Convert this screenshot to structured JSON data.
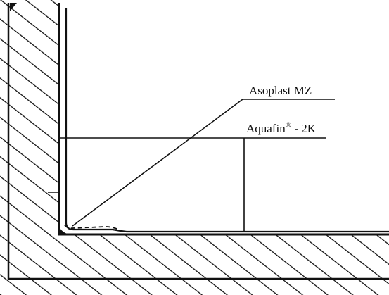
{
  "labels": {
    "asoplast": "Asoplast MZ",
    "aquafin_name": "Aquafin",
    "aquafin_mark": "®",
    "aquafin_suffix": " - 2K"
  },
  "colors": {
    "ink": "#111111",
    "background": "#ffffff"
  }
}
